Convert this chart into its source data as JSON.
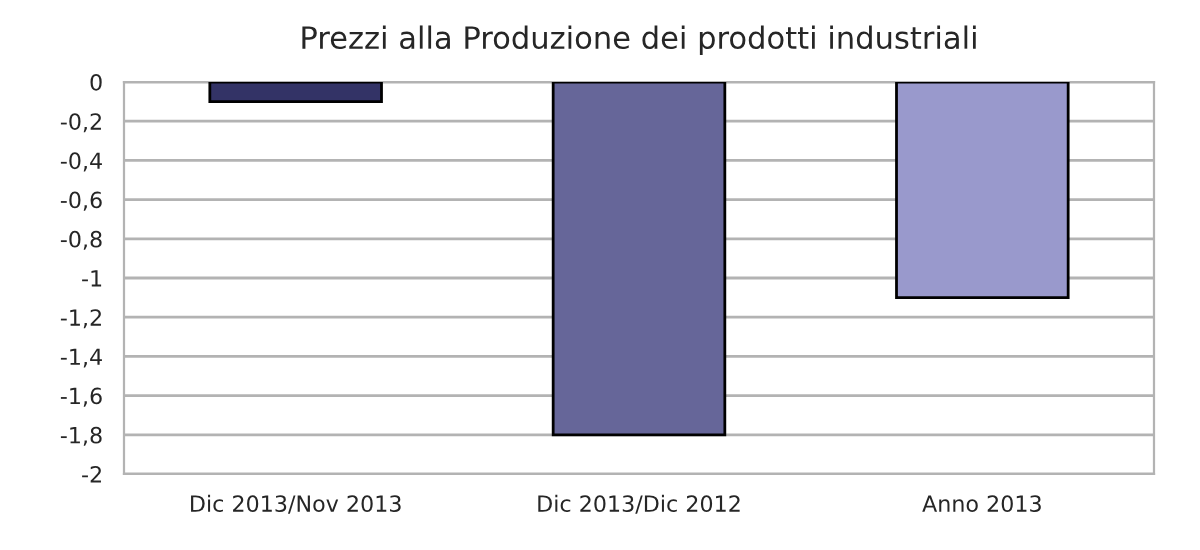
{
  "chart_data": {
    "type": "bar",
    "title": "Prezzi alla Produzione dei prodotti industriali",
    "categories": [
      "Dic 2013/Nov 2013",
      "Dic 2013/Dic 2012",
      "Anno 2013"
    ],
    "values": [
      -0.1,
      -1.8,
      -1.1
    ],
    "colors": [
      "#333366",
      "#666699",
      "#9999cc"
    ],
    "ylim": [
      -2,
      0
    ],
    "yticks": [
      {
        "value": -2,
        "label": "-2"
      },
      {
        "value": -1.8,
        "label": "-1,8"
      },
      {
        "value": -1.6,
        "label": "-1,6"
      },
      {
        "value": -1.4,
        "label": "-1,4"
      },
      {
        "value": -1.2,
        "label": "-1,2"
      },
      {
        "value": -1,
        "label": "-1"
      },
      {
        "value": -0.8,
        "label": "-0,8"
      },
      {
        "value": -0.6,
        "label": "-0,6"
      },
      {
        "value": -0.4,
        "label": "-0,4"
      },
      {
        "value": -0.2,
        "label": "-0,2"
      },
      {
        "value": 0,
        "label": "0"
      }
    ],
    "grid": "y",
    "legend": false
  }
}
